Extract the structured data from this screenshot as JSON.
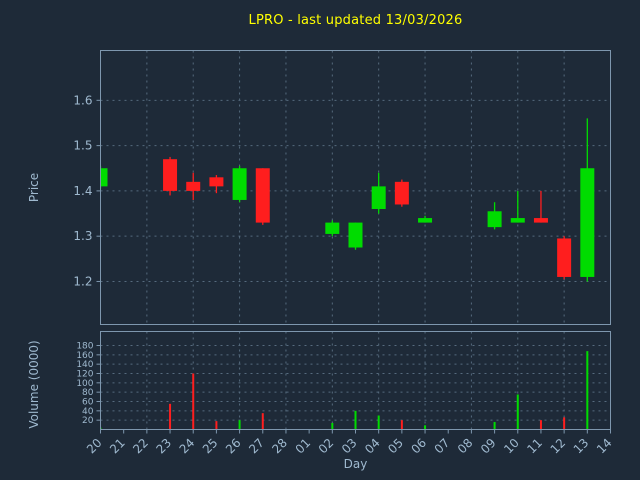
{
  "title": "LPRO - last updated 13/03/2026",
  "colors": {
    "background": "#1e2a38",
    "title": "#ffff00",
    "axis_text": "#9fb9cf",
    "axis_line": "#7e97ae",
    "grid": "#566b7e",
    "up": "#00dc00",
    "down": "#ff1e1e"
  },
  "chart_data": {
    "type": "candlestick",
    "title": "LPRO - last updated 13/03/2026",
    "xlabel": "Day",
    "ylabel_price": "Price",
    "ylabel_volume": "Volume (0000)",
    "legend": "none",
    "grid": "dashed; horizontal at every y tick, vertical every 2 days",
    "x_ticks": [
      "20",
      "21",
      "22",
      "23",
      "24",
      "25",
      "26",
      "27",
      "28",
      "01",
      "02",
      "03",
      "04",
      "05",
      "06",
      "07",
      "08",
      "09",
      "10",
      "11",
      "12",
      "13",
      "14"
    ],
    "price_ticks": [
      "1.2",
      "1.3",
      "1.4",
      "1.5",
      "1.6"
    ],
    "price_tick_values": [
      1.2,
      1.3,
      1.4,
      1.5,
      1.6
    ],
    "price_range": [
      1.105,
      1.71
    ],
    "volume_ticks": [
      20,
      40,
      60,
      80,
      100,
      120,
      140,
      160,
      180
    ],
    "volume_range": [
      0,
      210
    ],
    "candles": [
      {
        "day": "20",
        "open": 1.41,
        "high": 1.455,
        "low": 1.405,
        "close": 1.45,
        "volume": 4
      },
      {
        "day": "23",
        "open": 1.47,
        "high": 1.475,
        "low": 1.39,
        "close": 1.4,
        "volume": 55
      },
      {
        "day": "24",
        "open": 1.42,
        "high": 1.44,
        "low": 1.38,
        "close": 1.4,
        "volume": 120
      },
      {
        "day": "25",
        "open": 1.43,
        "high": 1.435,
        "low": 1.395,
        "close": 1.41,
        "volume": 18
      },
      {
        "day": "26",
        "open": 1.38,
        "high": 1.455,
        "low": 1.375,
        "close": 1.45,
        "volume": 20
      },
      {
        "day": "27",
        "open": 1.45,
        "high": 1.45,
        "low": 1.325,
        "close": 1.33,
        "volume": 35
      },
      {
        "day": "02",
        "open": 1.305,
        "high": 1.335,
        "low": 1.3,
        "close": 1.33,
        "volume": 14
      },
      {
        "day": "03",
        "open": 1.275,
        "high": 1.33,
        "low": 1.27,
        "close": 1.33,
        "volume": 40
      },
      {
        "day": "04",
        "open": 1.36,
        "high": 1.44,
        "low": 1.35,
        "close": 1.41,
        "volume": 30
      },
      {
        "day": "05",
        "open": 1.42,
        "high": 1.425,
        "low": 1.365,
        "close": 1.37,
        "volume": 20
      },
      {
        "day": "06",
        "open": 1.33,
        "high": 1.345,
        "low": 1.33,
        "close": 1.34,
        "volume": 9
      },
      {
        "day": "09",
        "open": 1.32,
        "high": 1.375,
        "low": 1.315,
        "close": 1.355,
        "volume": 16
      },
      {
        "day": "10",
        "open": 1.33,
        "high": 1.4,
        "low": 1.33,
        "close": 1.34,
        "volume": 75
      },
      {
        "day": "11",
        "open": 1.34,
        "high": 1.4,
        "low": 1.33,
        "close": 1.33,
        "volume": 20
      },
      {
        "day": "12",
        "open": 1.295,
        "high": 1.3,
        "low": 1.205,
        "close": 1.21,
        "volume": 26
      },
      {
        "day": "13",
        "open": 1.21,
        "high": 1.56,
        "low": 1.2,
        "close": 1.45,
        "volume": 168
      }
    ]
  }
}
